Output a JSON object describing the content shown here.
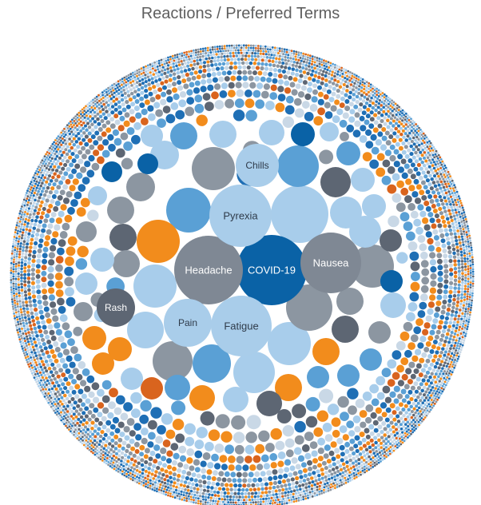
{
  "chart_data": {
    "type": "packed-bubble",
    "title": "Reactions / Preferred Terms",
    "palette": [
      "#1f6fb5",
      "#5aa0d5",
      "#a8cdeb",
      "#c9d8e6",
      "#8c96a1",
      "#5d6673",
      "#f28c1c",
      "#d9641e"
    ],
    "labeled_bubbles": [
      {
        "name": "COVID-19",
        "color": "#0a62a6",
        "label_color": "#ffffff"
      },
      {
        "name": "Headache",
        "color": "#7f8894",
        "label_color": "#ffffff"
      },
      {
        "name": "Pyrexia",
        "color": "#a9cdea",
        "label_color": "#2f3b4a"
      },
      {
        "name": "Nausea",
        "color": "#7f8894",
        "label_color": "#ffffff"
      },
      {
        "name": "Fatigue",
        "color": "#a9cdea",
        "label_color": "#2f3b4a"
      },
      {
        "name": "Chills",
        "color": "#a9cdea",
        "label_color": "#2f3b4a"
      },
      {
        "name": "Pain",
        "color": "#a9cdea",
        "label_color": "#2f3b4a"
      },
      {
        "name": "Rash",
        "color": "#5d6673",
        "label_color": "#ffffff"
      }
    ]
  }
}
